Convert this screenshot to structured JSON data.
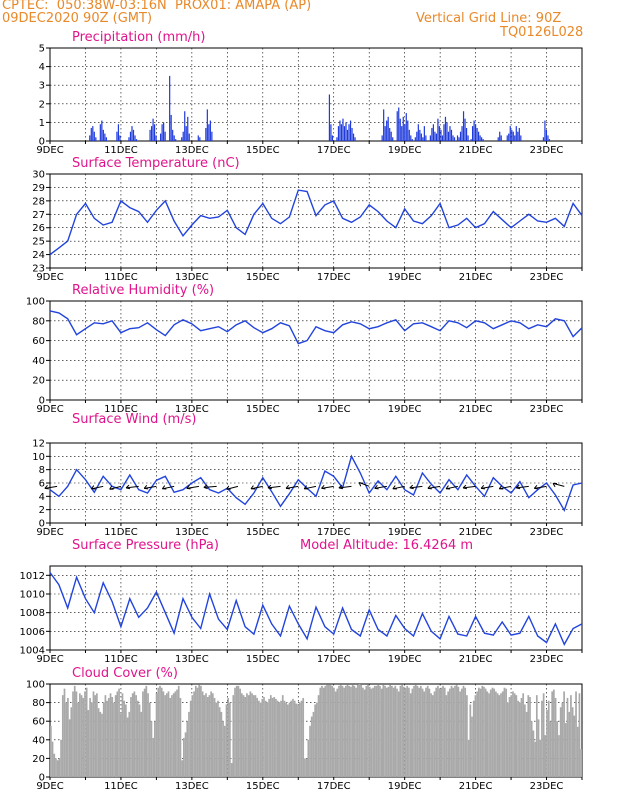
{
  "header": {
    "line1_left": "CPTEC:  050:38W-03:16N  PROX01: AMAPA (AP)",
    "line2_left": "09DEC2020 90Z (GMT)",
    "line2_right": "Vertical Grid Line: 90Z",
    "line3_right": "TQ0126L028"
  },
  "colors": {
    "header": "#e8892a",
    "title": "#e0148c",
    "line": "#2244dd",
    "bar": "#1f3bdc",
    "cloud": "#a9a9a9"
  },
  "chart_data": [
    {
      "type": "bar",
      "title": "Precipitation (mm/h)",
      "ylim": [
        0,
        5
      ],
      "yticks": [
        0,
        1,
        2,
        3,
        4,
        5
      ],
      "x_ticks": [
        "9DEC",
        "11DEC",
        "13DEC",
        "15DEC",
        "17DEC",
        "19DEC",
        "21DEC",
        "23DEC"
      ],
      "x_start_day": 9,
      "values": [
        0,
        0,
        0,
        0,
        0,
        0,
        0,
        0,
        0,
        0,
        0,
        0,
        0,
        0,
        0,
        0,
        0,
        0,
        0,
        0,
        0,
        0,
        0,
        0,
        0,
        0,
        0.3,
        0.7,
        0.8,
        0.5,
        0.2,
        0,
        0,
        0.9,
        1.1,
        0.6,
        0.4,
        0.2,
        0,
        0,
        0,
        0,
        0,
        0,
        0.5,
        0.9,
        0.3,
        0,
        0,
        0,
        0,
        0,
        0.2,
        0.5,
        0.8,
        0.6,
        0.3,
        0.1,
        0,
        0,
        0,
        0,
        0,
        0,
        0,
        0,
        0.6,
        0.8,
        1.2,
        0.9,
        0.3,
        0,
        0,
        0.4,
        0.9,
        1.0,
        0.5,
        0,
        0,
        3.5,
        1.4,
        0.6,
        0.3,
        0.1,
        0,
        0,
        0,
        0.2,
        0.5,
        1.6,
        0.8,
        1.3,
        0.4,
        0,
        0,
        0,
        0,
        0,
        0.3,
        0.2,
        0,
        0,
        0,
        0.7,
        1.7,
        0.9,
        1.1,
        0.5,
        0,
        0,
        0,
        0,
        0,
        0,
        0,
        0,
        0,
        0,
        0,
        0,
        0,
        0,
        0,
        0,
        0,
        0,
        0,
        0,
        0,
        0,
        0,
        0,
        0,
        0,
        0,
        0,
        0,
        0,
        0,
        0,
        0,
        0,
        0,
        0,
        0,
        0,
        0,
        0,
        0,
        0,
        0,
        0,
        0,
        0,
        0,
        0,
        0,
        0,
        0,
        0,
        0,
        0,
        0,
        0,
        0,
        0,
        0,
        0,
        0,
        0,
        0,
        0,
        0,
        0,
        0,
        0,
        0,
        0,
        0,
        0,
        0,
        0,
        0,
        0,
        0,
        2.5,
        0.9,
        0.3,
        0,
        0,
        0.2,
        0.8,
        1.1,
        0.9,
        1.2,
        0.8,
        1.0,
        0.6,
        0.9,
        1.1,
        0.7,
        0.4,
        0.2,
        0,
        0,
        0,
        0,
        0,
        0,
        0,
        0,
        0,
        0,
        0,
        0,
        0,
        0,
        0,
        0,
        0,
        0.3,
        1.7,
        0.8,
        1.1,
        1.3,
        0.7,
        0.5,
        0.2,
        0,
        0,
        1.6,
        1.8,
        1.2,
        0.8,
        1.3,
        0.9,
        1.5,
        1.1,
        0.6,
        0.3,
        0.1,
        0,
        0.2,
        0.5,
        0.9,
        0.6,
        0.4,
        0.2,
        0.8,
        0.3,
        0,
        0,
        0.3,
        0.7,
        0.9,
        0.5,
        0.4,
        1.2,
        0.8,
        0.6,
        0.3,
        0.9,
        1.3,
        1.0,
        0.5,
        0.8,
        0.6,
        0.3,
        0.2,
        0,
        0.3,
        0.2,
        0.5,
        0.8,
        1.6,
        1.2,
        0.7,
        0.3,
        0,
        0.1,
        0.8,
        1.1,
        0.9,
        0.7,
        0.5,
        0.3,
        0.2,
        0.1,
        0,
        0,
        0,
        0,
        0,
        0,
        0,
        0,
        0,
        0.2,
        0.5,
        0.3,
        0,
        0,
        0,
        0.3,
        0.4,
        0.8,
        0.6,
        0.5,
        0.3,
        0.8,
        0.5,
        0.7,
        0.3,
        0,
        0,
        0,
        0,
        0,
        0,
        0,
        0,
        0,
        0,
        0,
        0,
        0,
        0,
        0.2,
        1.1,
        0.6,
        0.3,
        0.1,
        0,
        0,
        0,
        0,
        0,
        0,
        0,
        0,
        0,
        0,
        0,
        0,
        0,
        0,
        0,
        0,
        0,
        0,
        0,
        0,
        0
      ]
    },
    {
      "type": "line",
      "title": "Surface Temperature (nC)",
      "ylim": [
        23,
        30
      ],
      "yticks": [
        23,
        24,
        25,
        26,
        27,
        28,
        29,
        30
      ],
      "x_ticks": [
        "9DEC",
        "11DEC",
        "13DEC",
        "15DEC",
        "17DEC",
        "19DEC",
        "21DEC",
        "23DEC"
      ],
      "x": [
        9.0,
        9.25,
        9.5,
        9.75,
        10.0,
        10.25,
        10.5,
        10.75,
        11.0,
        11.25,
        11.5,
        11.75,
        12.0,
        12.25,
        12.5,
        12.75,
        13.0,
        13.25,
        13.5,
        13.75,
        14.0,
        14.25,
        14.5,
        14.75,
        15.0,
        15.25,
        15.5,
        15.75,
        16.0,
        16.25,
        16.5,
        16.75,
        17.0,
        17.25,
        17.5,
        17.75,
        18.0,
        18.25,
        18.5,
        18.75,
        19.0,
        19.25,
        19.5,
        19.75,
        20.0,
        20.25,
        20.5,
        20.75,
        21.0,
        21.25,
        21.5,
        21.75,
        22.0,
        22.25,
        22.5,
        22.75,
        23.0,
        23.25,
        23.5,
        23.75,
        24.0
      ],
      "y": [
        24.0,
        24.5,
        25.0,
        27.0,
        27.8,
        26.7,
        26.2,
        26.4,
        28.0,
        27.5,
        27.2,
        26.4,
        27.3,
        28.0,
        26.5,
        25.4,
        26.2,
        26.9,
        26.7,
        26.8,
        27.3,
        26.0,
        25.5,
        27.0,
        27.8,
        26.7,
        26.3,
        26.8,
        28.8,
        28.7,
        26.9,
        27.7,
        28.0,
        26.7,
        26.4,
        26.8,
        27.7,
        27.2,
        26.5,
        26.0,
        27.4,
        26.5,
        26.3,
        26.9,
        27.8,
        26.0,
        26.2,
        26.7,
        26.0,
        26.3,
        27.2,
        26.6,
        26.0,
        26.5,
        27.0,
        26.5,
        26.4,
        26.7,
        26.1,
        27.8,
        26.9
      ]
    },
    {
      "type": "line",
      "title": "Relative Humidity (%)",
      "ylim": [
        0,
        100
      ],
      "yticks": [
        0,
        20,
        40,
        60,
        80,
        100
      ],
      "x_ticks": [
        "9DEC",
        "11DEC",
        "13DEC",
        "15DEC",
        "17DEC",
        "19DEC",
        "21DEC",
        "23DEC"
      ],
      "x": [
        9.0,
        9.25,
        9.5,
        9.75,
        10.0,
        10.25,
        10.5,
        10.75,
        11.0,
        11.25,
        11.5,
        11.75,
        12.0,
        12.25,
        12.5,
        12.75,
        13.0,
        13.25,
        13.5,
        13.75,
        14.0,
        14.25,
        14.5,
        14.75,
        15.0,
        15.25,
        15.5,
        15.75,
        16.0,
        16.25,
        16.5,
        16.75,
        17.0,
        17.25,
        17.5,
        17.75,
        18.0,
        18.25,
        18.5,
        18.75,
        19.0,
        19.25,
        19.5,
        19.75,
        20.0,
        20.25,
        20.5,
        20.75,
        21.0,
        21.25,
        21.5,
        21.75,
        22.0,
        22.25,
        22.5,
        22.75,
        23.0,
        23.25,
        23.5,
        23.75,
        24.0
      ],
      "y": [
        90,
        88,
        82,
        66,
        72,
        78,
        77,
        80,
        68,
        72,
        73,
        78,
        71,
        65,
        76,
        81,
        77,
        70,
        72,
        74,
        69,
        76,
        80,
        73,
        68,
        72,
        78,
        75,
        57,
        60,
        74,
        70,
        68,
        76,
        79,
        77,
        72,
        74,
        78,
        81,
        70,
        77,
        78,
        74,
        70,
        80,
        78,
        73,
        80,
        78,
        72,
        76,
        80,
        78,
        72,
        76,
        74,
        82,
        80,
        64,
        73
      ]
    },
    {
      "type": "line",
      "title": "Surface Wind (m/s)",
      "ylim": [
        0,
        12
      ],
      "yticks": [
        0,
        2,
        4,
        6,
        8,
        10,
        12
      ],
      "x_ticks": [
        "9DEC",
        "11DEC",
        "13DEC",
        "15DEC",
        "17DEC",
        "19DEC",
        "21DEC",
        "23DEC"
      ],
      "x": [
        9.0,
        9.25,
        9.5,
        9.75,
        10.0,
        10.25,
        10.5,
        10.75,
        11.0,
        11.25,
        11.5,
        11.75,
        12.0,
        12.25,
        12.5,
        12.75,
        13.0,
        13.25,
        13.5,
        13.75,
        14.0,
        14.25,
        14.5,
        14.75,
        15.0,
        15.25,
        15.5,
        15.75,
        16.0,
        16.25,
        16.5,
        16.75,
        17.0,
        17.25,
        17.5,
        17.75,
        18.0,
        18.25,
        18.5,
        18.75,
        19.0,
        19.25,
        19.5,
        19.75,
        20.0,
        20.25,
        20.5,
        20.75,
        21.0,
        21.25,
        21.5,
        21.75,
        22.0,
        22.25,
        22.5,
        22.75,
        23.0,
        23.25,
        23.5,
        23.75,
        24.0
      ],
      "y": [
        5.0,
        4.0,
        5.5,
        8.0,
        6.5,
        4.6,
        7.0,
        5.5,
        5.0,
        7.2,
        5.0,
        4.5,
        6.4,
        7.0,
        4.6,
        5.0,
        6.0,
        6.8,
        5.0,
        4.5,
        5.2,
        3.8,
        2.8,
        4.5,
        6.8,
        4.7,
        2.5,
        4.4,
        6.5,
        5.2,
        4.0,
        7.8,
        7.0,
        5.3,
        10.0,
        7.5,
        4.5,
        6.3,
        5.0,
        7.0,
        5.0,
        4.2,
        7.5,
        5.8,
        4.5,
        6.5,
        5.0,
        7.2,
        5.5,
        4.0,
        6.8,
        5.5,
        4.5,
        6.2,
        3.8,
        5.0,
        6.0,
        4.2,
        1.9,
        5.7,
        6.0
      ],
      "arrows": [
        {
          "x": 9.2,
          "dir": 200
        },
        {
          "x": 10.5,
          "dir": 205
        },
        {
          "x": 11.0,
          "dir": 210
        },
        {
          "x": 11.5,
          "dir": 195
        },
        {
          "x": 12.0,
          "dir": 200
        },
        {
          "x": 12.5,
          "dir": 205
        },
        {
          "x": 13.2,
          "dir": 200
        },
        {
          "x": 13.7,
          "dir": 190
        },
        {
          "x": 14.3,
          "dir": 210
        },
        {
          "x": 15.0,
          "dir": 205
        },
        {
          "x": 15.5,
          "dir": 195
        },
        {
          "x": 16.0,
          "dir": 200
        },
        {
          "x": 16.5,
          "dir": 205
        },
        {
          "x": 17.0,
          "dir": 200
        },
        {
          "x": 17.5,
          "dir": 195
        },
        {
          "x": 18.0,
          "dir": 140
        },
        {
          "x": 18.5,
          "dir": 200
        },
        {
          "x": 19.0,
          "dir": 205
        },
        {
          "x": 19.5,
          "dir": 195
        },
        {
          "x": 20.0,
          "dir": 200
        },
        {
          "x": 20.5,
          "dir": 205
        },
        {
          "x": 21.0,
          "dir": 195
        },
        {
          "x": 21.5,
          "dir": 200
        },
        {
          "x": 22.0,
          "dir": 205
        },
        {
          "x": 22.5,
          "dir": 195
        },
        {
          "x": 23.0,
          "dir": 200
        },
        {
          "x": 23.5,
          "dir": 150
        }
      ]
    },
    {
      "type": "line",
      "title": "Surface Pressure (hPa)",
      "annotation": "Model Altitude: 16.4264 m",
      "ylim": [
        1004,
        1013
      ],
      "yticks": [
        1004,
        1006,
        1008,
        1010,
        1012
      ],
      "x_ticks": [
        "9DEC",
        "11DEC",
        "13DEC",
        "15DEC",
        "17DEC",
        "19DEC",
        "21DEC",
        "23DEC"
      ],
      "x": [
        9.0,
        9.25,
        9.5,
        9.75,
        10.0,
        10.25,
        10.5,
        10.75,
        11.0,
        11.25,
        11.5,
        11.75,
        12.0,
        12.25,
        12.5,
        12.75,
        13.0,
        13.25,
        13.5,
        13.75,
        14.0,
        14.25,
        14.5,
        14.75,
        15.0,
        15.25,
        15.5,
        15.75,
        16.0,
        16.25,
        16.5,
        16.75,
        17.0,
        17.25,
        17.5,
        17.75,
        18.0,
        18.25,
        18.5,
        18.75,
        19.0,
        19.25,
        19.5,
        19.75,
        20.0,
        20.25,
        20.5,
        20.75,
        21.0,
        21.25,
        21.5,
        21.75,
        22.0,
        22.25,
        22.5,
        22.75,
        23.0,
        23.25,
        23.5,
        23.75,
        24.0
      ],
      "y": [
        1012.3,
        1011.0,
        1008.5,
        1011.8,
        1009.5,
        1008.0,
        1011.2,
        1009.2,
        1006.5,
        1009.5,
        1007.5,
        1008.5,
        1010.2,
        1008.0,
        1005.8,
        1009.5,
        1007.5,
        1006.3,
        1010.0,
        1007.3,
        1006.2,
        1009.3,
        1006.5,
        1005.7,
        1008.8,
        1006.8,
        1005.5,
        1008.7,
        1006.8,
        1005.2,
        1008.6,
        1006.5,
        1005.7,
        1008.5,
        1006.2,
        1005.5,
        1008.3,
        1006.2,
        1005.5,
        1007.7,
        1006.3,
        1005.5,
        1007.9,
        1006.0,
        1005.2,
        1007.6,
        1005.7,
        1005.5,
        1007.6,
        1005.8,
        1005.6,
        1007.0,
        1005.6,
        1005.8,
        1007.6,
        1005.5,
        1004.8,
        1006.8,
        1004.6,
        1006.3,
        1006.8
      ]
    },
    {
      "type": "bar",
      "title": "Cloud Cover (%)",
      "ylim": [
        0,
        100
      ],
      "yticks": [
        0,
        20,
        40,
        60,
        80,
        100
      ],
      "x_ticks": [
        "9DEC",
        "11DEC",
        "13DEC",
        "15DEC",
        "17DEC",
        "19DEC",
        "21DEC",
        "23DEC"
      ],
      "x_start_day": 9,
      "values": [
        55,
        38,
        25,
        20,
        18,
        20,
        40,
        88,
        95,
        80,
        85,
        62,
        75,
        92,
        98,
        92,
        80,
        90,
        88,
        85,
        92,
        96,
        72,
        85,
        80,
        92,
        88,
        90,
        74,
        70,
        68,
        80,
        88,
        82,
        85,
        90,
        86,
        80,
        88,
        92,
        95,
        68,
        90,
        82,
        78,
        64,
        70,
        86,
        90,
        92,
        88,
        82,
        78,
        70,
        92,
        95,
        98,
        90,
        80,
        60,
        42,
        60,
        90,
        96,
        98,
        96,
        92,
        88,
        90,
        92,
        85,
        88,
        90,
        92,
        94,
        98,
        85,
        18,
        42,
        48,
        60,
        70,
        82,
        88,
        92,
        98,
        96,
        99,
        98,
        92,
        88,
        90,
        86,
        88,
        92,
        90,
        85,
        80,
        82,
        75,
        70,
        60,
        55,
        78,
        85,
        80,
        15,
        88,
        96,
        98,
        98,
        95,
        90,
        88,
        86,
        90,
        88,
        92,
        90,
        88,
        88,
        85,
        82,
        80,
        84,
        86,
        82,
        80,
        84,
        88,
        85,
        86,
        84,
        82,
        80,
        82,
        88,
        82,
        80,
        78,
        80,
        82,
        84,
        82,
        79,
        78,
        80,
        82,
        85,
        20,
        20,
        40,
        55,
        65,
        70,
        78,
        80,
        88,
        96,
        98,
        96,
        98,
        99,
        99,
        99,
        98,
        96,
        92,
        95,
        98,
        99,
        98,
        96,
        98,
        99,
        98,
        97,
        99,
        98,
        96,
        99,
        100,
        99,
        96,
        94,
        98,
        99,
        97,
        95,
        96,
        98,
        98,
        99,
        98,
        95,
        99,
        98,
        96,
        97,
        99,
        98,
        96,
        98,
        95,
        92,
        98,
        99,
        97,
        96,
        98,
        96,
        90,
        95,
        98,
        99,
        98,
        96,
        98,
        95,
        92,
        96,
        98,
        95,
        90,
        88,
        92,
        96,
        98,
        95,
        96,
        98,
        96,
        88,
        92,
        95,
        98,
        96,
        98,
        99,
        97,
        92,
        95,
        98,
        96,
        88,
        40,
        78,
        65,
        82,
        88,
        92,
        96,
        95,
        98,
        97,
        95,
        92,
        90,
        94,
        96,
        95,
        92,
        90,
        88,
        90,
        92,
        96,
        95,
        80,
        86,
        88,
        92,
        90,
        88,
        82,
        80,
        85,
        90,
        78,
        70,
        88,
        86,
        60,
        50,
        38,
        88,
        62,
        40,
        82,
        90,
        45,
        72,
        82,
        60,
        92,
        94,
        85,
        60,
        45,
        75,
        80,
        92,
        58,
        85,
        70,
        88,
        75,
        66,
        92,
        54,
        90,
        30
      ]
    }
  ]
}
